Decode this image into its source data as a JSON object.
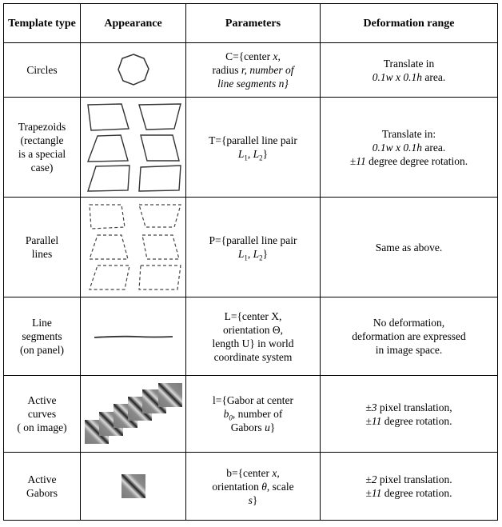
{
  "header": {
    "columns": [
      "Template type",
      "Appearance",
      "Parameters",
      "Deformation range"
    ]
  },
  "table": {
    "rows": [
      {
        "type": [
          "Circles"
        ],
        "parameters": [
          [
            "C={center ",
            {
              "text": "x,",
              "italic": true
            }
          ],
          [
            "radius ",
            {
              "text": "r, number of",
              "italic": true
            }
          ],
          [
            {
              "text": "line segments n}",
              "italic": true
            }
          ]
        ],
        "deformation": [
          [
            "Translate in"
          ],
          [
            {
              "text": "0.1w x 0.1h",
              "italic": true
            },
            " area."
          ]
        ]
      },
      {
        "type": [
          "Trapezoids",
          "(rectangle",
          "is a special",
          "case)"
        ],
        "parameters": [
          [
            "T={parallel line pair"
          ],
          [
            {
              "text": "L",
              "italic": true
            },
            {
              "text": "1",
              "sub": true
            },
            ", ",
            {
              "text": "L",
              "italic": true
            },
            {
              "text": "2",
              "sub": true
            },
            "}"
          ]
        ],
        "deformation": [
          [
            "Translate in:"
          ],
          [
            {
              "text": "0.1w x 0.1h",
              "italic": true
            },
            " area."
          ],
          [
            "±",
            {
              "text": "11",
              "italic": true
            },
            " degree degree rotation."
          ]
        ]
      },
      {
        "type": [
          "Parallel",
          "lines"
        ],
        "parameters": [
          [
            "P={parallel line pair"
          ],
          [
            {
              "text": "L",
              "italic": true
            },
            {
              "text": "1",
              "sub": true
            },
            ", ",
            {
              "text": "L",
              "italic": true
            },
            {
              "text": "2",
              "sub": true
            },
            "}"
          ]
        ],
        "deformation": [
          [
            "Same as above."
          ]
        ]
      },
      {
        "type": [
          "Line",
          "segments",
          "(on panel)"
        ],
        "parameters": [
          [
            "L={center X,"
          ],
          [
            "orientation Θ,"
          ],
          [
            "length U} in world"
          ],
          [
            "coordinate system"
          ]
        ],
        "deformation": [
          [
            "No deformation,"
          ],
          [
            "deformation are expressed"
          ],
          [
            "in image space."
          ]
        ]
      },
      {
        "type": [
          "Active",
          "curves",
          "( on image)"
        ],
        "parameters": [
          [
            "l={Gabor at center"
          ],
          [
            {
              "text": "b",
              "italic": true
            },
            {
              "text": "0",
              "sub": true,
              "italic": true
            },
            ", number of"
          ],
          [
            "Gabors ",
            {
              "text": "u",
              "italic": true
            },
            "}"
          ]
        ],
        "deformation": [
          [
            "±",
            {
              "text": "3",
              "italic": true
            },
            " pixel translation,"
          ],
          [
            "±",
            {
              "text": "11",
              "italic": true
            },
            " degree rotation."
          ]
        ]
      },
      {
        "type": [
          "Active",
          "Gabors"
        ],
        "parameters": [
          [
            "b={center ",
            {
              "text": "x,",
              "italic": true
            }
          ],
          [
            "orientation ",
            {
              "text": "θ",
              "italic": true
            },
            ", scale"
          ],
          [
            {
              "text": "s",
              "italic": true
            },
            "}"
          ]
        ],
        "deformation": [
          [
            "±",
            {
              "text": "2",
              "italic": true
            },
            " pixel translation."
          ],
          [
            "±",
            {
              "text": "11",
              "italic": true
            },
            " degree rotation."
          ]
        ]
      }
    ]
  }
}
